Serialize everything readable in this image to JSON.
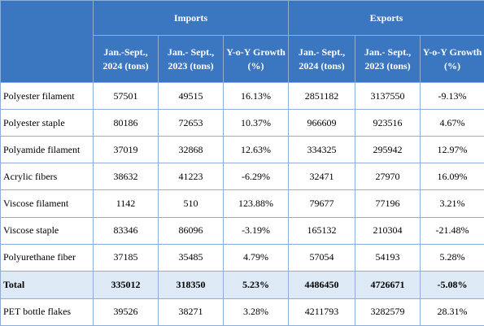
{
  "table": {
    "group_headers": {
      "imports": "Imports",
      "exports": "Exports"
    },
    "sub_headers": [
      "Jan.-Sept., 2024 (tons)",
      "Jan.- Sept., 2023 (tons)",
      "Y-o-Y Growth (%)",
      "Jan.- Sept., 2024 (tons)",
      "Jan.- Sept., 2023 (tons)",
      "Y-o-Y Growth (%)"
    ],
    "rows": [
      {
        "product": "Polyester filament",
        "cells": [
          "57501",
          "49515",
          "16.13%",
          "2851182",
          "3137550",
          "-9.13%"
        ]
      },
      {
        "product": "Polyester staple",
        "cells": [
          "80186",
          "72653",
          "10.37%",
          "966609",
          "923516",
          "4.67%"
        ]
      },
      {
        "product": "Polyamide filament",
        "cells": [
          "37019",
          "32868",
          "12.63%",
          "334325",
          "295942",
          "12.97%"
        ]
      },
      {
        "product": "Acrylic fibers",
        "cells": [
          "38632",
          "41223",
          "-6.29%",
          "32471",
          "27970",
          "16.09%"
        ]
      },
      {
        "product": "Viscose filament",
        "cells": [
          "1142",
          "510",
          "123.88%",
          "79677",
          "77196",
          "3.21%"
        ]
      },
      {
        "product": "Viscose staple",
        "cells": [
          "83346",
          "86096",
          "-3.19%",
          "165132",
          "210304",
          "-21.48%"
        ]
      },
      {
        "product": "Polyurethane fiber",
        "cells": [
          "37185",
          "35485",
          "4.79%",
          "57054",
          "54193",
          "5.28%"
        ]
      },
      {
        "product": "Total",
        "cells": [
          "335012",
          "318350",
          "5.23%",
          "4486450",
          "4726671",
          "-5.08%"
        ]
      },
      {
        "product": "PET bottle flakes",
        "cells": [
          "39526",
          "38271",
          "3.28%",
          "4211793",
          "3282579",
          "28.31%"
        ]
      }
    ]
  },
  "colors": {
    "header_bg": "#3b76c1",
    "header_text": "#ffffff",
    "total_row_bg": "#dde9f5",
    "border": "#8eaed8"
  }
}
